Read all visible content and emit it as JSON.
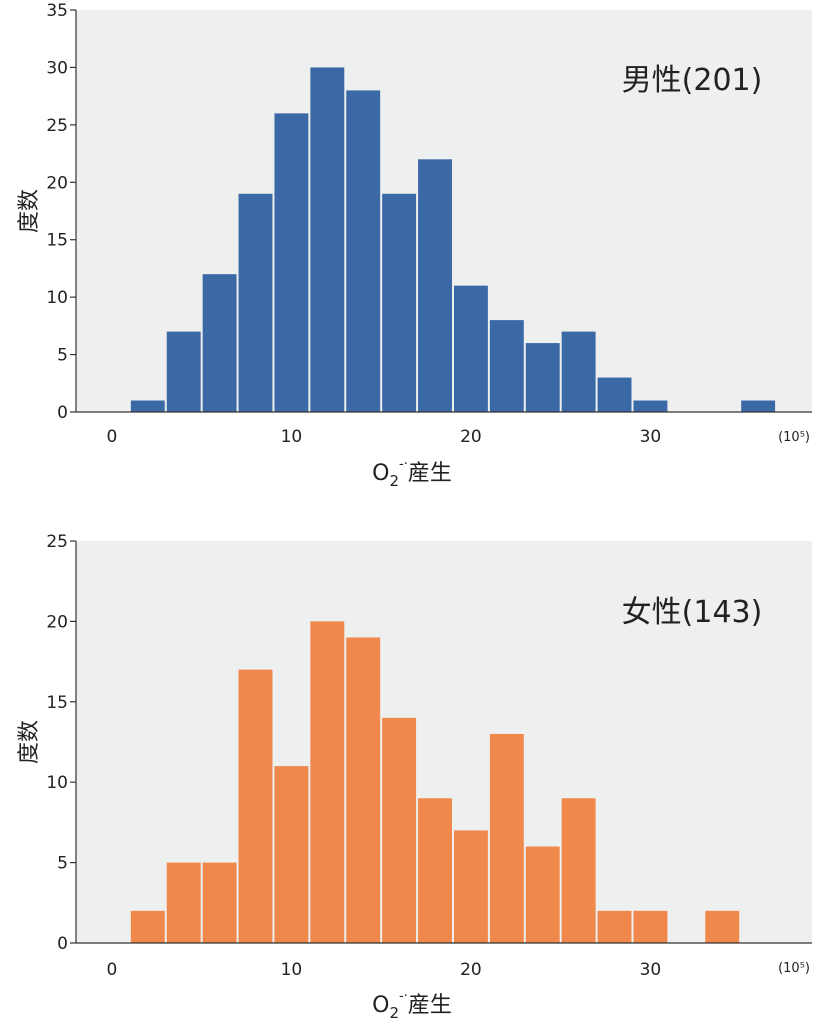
{
  "chart_data": [
    {
      "type": "bar",
      "title": "男性(201)",
      "xlabel": "O2-·産生",
      "ylabel": "度数",
      "x_unit": "(10⁵)",
      "bin_width": 2,
      "bin_starts": [
        1,
        3,
        5,
        7,
        9,
        11,
        13,
        15,
        17,
        19,
        21,
        23,
        25,
        27,
        29,
        31,
        33,
        35
      ],
      "values": [
        1,
        7,
        12,
        19,
        26,
        30,
        28,
        19,
        22,
        11,
        8,
        6,
        7,
        3,
        1,
        0,
        0,
        1
      ],
      "xlim": [
        -2,
        39
      ],
      "xticks": [
        0,
        10,
        20,
        30
      ],
      "ylim": [
        0,
        35
      ],
      "yticks": [
        0,
        5,
        10,
        15,
        20,
        25,
        30,
        35
      ],
      "color": "#3A69A6",
      "grid": false
    },
    {
      "type": "bar",
      "title": "女性(143)",
      "xlabel": "O2-·産生",
      "ylabel": "度数",
      "x_unit": "(10⁵)",
      "bin_width": 2,
      "bin_starts": [
        1,
        3,
        5,
        7,
        9,
        11,
        13,
        15,
        17,
        19,
        21,
        23,
        25,
        27,
        29,
        31,
        33
      ],
      "values": [
        2,
        5,
        5,
        17,
        11,
        20,
        19,
        14,
        9,
        7,
        13,
        6,
        9,
        2,
        2,
        0,
        2
      ],
      "xlim": [
        -2,
        39
      ],
      "xticks": [
        0,
        10,
        20,
        30
      ],
      "ylim": [
        0,
        25
      ],
      "yticks": [
        0,
        5,
        10,
        15,
        20,
        25
      ],
      "color": "#F0874B",
      "grid": false
    }
  ]
}
